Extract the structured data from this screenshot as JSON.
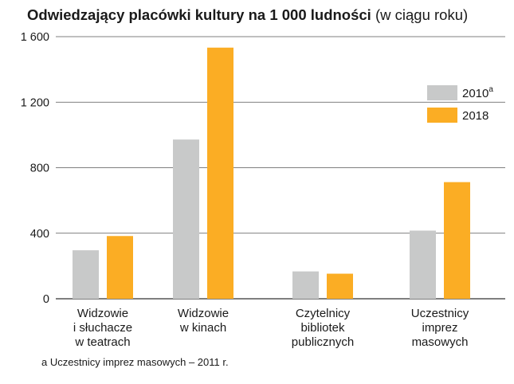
{
  "title": {
    "main": "Odwiedzający placówki kultury na 1 000 ludności",
    "sub": "(w ciągu roku)"
  },
  "footnote": "a Uczestnicy imprez masowych – 2011 r.",
  "chart_data": {
    "type": "bar",
    "categories": [
      [
        "Widzowie",
        "i słuchacze",
        "w teatrach"
      ],
      [
        "Widzowie",
        "w kinach"
      ],
      [
        "Czytelnicy",
        "bibliotek",
        "publicznych"
      ],
      [
        "Uczestnicy",
        "imprez",
        "masowych"
      ]
    ],
    "series": [
      {
        "name": "2010",
        "sup": "a",
        "color": "#c8c9c9",
        "values": [
          296,
          972,
          167,
          416
        ]
      },
      {
        "name": "2018",
        "color": "#fbad24",
        "values": [
          383,
          1533,
          153,
          712
        ]
      }
    ],
    "yticks": [
      0,
      400,
      800,
      1200,
      1600
    ],
    "ytick_labels": [
      "0",
      "400",
      "800",
      "1 200",
      "1 600"
    ],
    "ylim": [
      0,
      1600
    ],
    "grid": true,
    "legend": "top-right"
  }
}
